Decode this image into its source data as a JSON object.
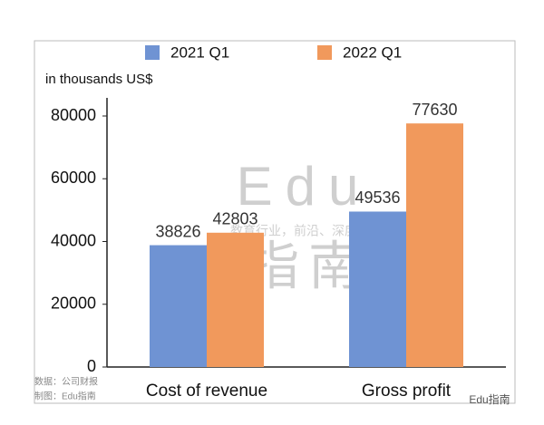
{
  "chart_data": {
    "type": "bar",
    "axis_label": "in thousands US$",
    "categories": [
      "Cost of revenue",
      "Gross profit"
    ],
    "series": [
      {
        "name": "2021 Q1",
        "color": "#6f93d3",
        "values": [
          38826,
          49536
        ]
      },
      {
        "name": "2022 Q1",
        "color": "#f1995c",
        "values": [
          42803,
          77630
        ]
      }
    ],
    "ylim": [
      0,
      80000
    ],
    "yticks": [
      0,
      20000,
      40000,
      60000,
      80000
    ]
  },
  "watermark": {
    "title": "Edu",
    "subtitle": "教育行业，前沿、深度、独家",
    "name": "指南"
  },
  "source": {
    "data": "数据：公司财报",
    "made_by": "制图：Edu指南",
    "account": "Edu指南"
  }
}
